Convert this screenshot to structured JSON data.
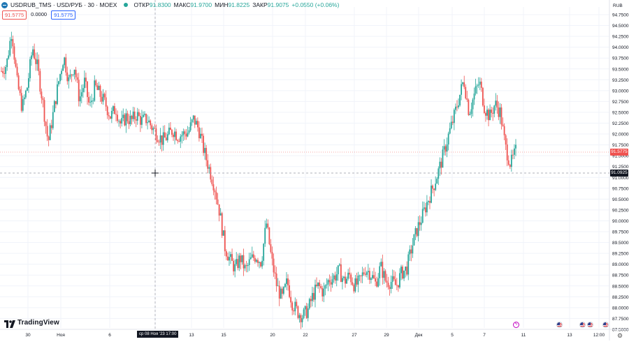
{
  "header": {
    "symbol_title": "USDRUB_TMS · USD/РУБ · 30 · MOEX",
    "open_label": "ОТКР",
    "open_value": "91.8300",
    "high_label": "МАКС",
    "high_value": "91.9700",
    "low_label": "МИН",
    "low_value": "91.8225",
    "close_label": "ЗАКР",
    "close_value": "91.9075",
    "change": "+0.0550 (+0.06%)"
  },
  "trade": {
    "sell": "91.5775",
    "spread": "0.0000",
    "buy": "91.5775"
  },
  "brand": {
    "name": "TradingView"
  },
  "currency_label": "RUB",
  "last_price_label": "91.5775",
  "crosshair_price_label": "91.0925",
  "crosshair_date_label": "ср 08 Ноя '23   17:00",
  "colors": {
    "up": "#26a69a",
    "down": "#ef5350",
    "grid": "#f0f3fa",
    "text": "#131722"
  },
  "chart_data": {
    "type": "candlestick",
    "symbol": "USDRUB_TMS",
    "interval": "30",
    "exchange": "MOEX",
    "y_ticks": [
      "94.7500",
      "94.5000",
      "94.2500",
      "94.0000",
      "93.7500",
      "93.5000",
      "93.2500",
      "93.0000",
      "92.7500",
      "92.5000",
      "92.2500",
      "92.0000",
      "91.7500",
      "91.5000",
      "91.2500",
      "91.0000",
      "90.7500",
      "90.5000",
      "90.2500",
      "90.0000",
      "89.7500",
      "89.5000",
      "89.2500",
      "89.0000",
      "88.7500",
      "88.5000",
      "88.2500",
      "88.0000",
      "87.7500",
      "87.5000"
    ],
    "y_tick_values": [
      94.75,
      94.5,
      94.25,
      94.0,
      93.75,
      93.5,
      93.25,
      93.0,
      92.75,
      92.5,
      92.25,
      92.0,
      91.75,
      91.5,
      91.25,
      91.0,
      90.75,
      90.5,
      90.25,
      90.0,
      89.75,
      89.5,
      89.25,
      89.0,
      88.75,
      88.5,
      88.25,
      88.0,
      87.75,
      87.5
    ],
    "x_ticks": [
      "30",
      "Ноя",
      "6",
      "9",
      "13",
      "15",
      "20",
      "22",
      "27",
      "29",
      "Дек",
      "5",
      "7",
      "11",
      "13",
      "12:00"
    ],
    "price_path": [
      93.45,
      93.6,
      94.4,
      93.2,
      92.6,
      93.1,
      94.0,
      93.5,
      92.7,
      91.8,
      92.5,
      93.2,
      93.8,
      93.2,
      93.6,
      92.8,
      93.2,
      92.6,
      93.1,
      92.9,
      92.7,
      92.4,
      92.6,
      92.2,
      92.4,
      92.3,
      92.45,
      92.3,
      92.35,
      92.15,
      92.0,
      91.85,
      91.95,
      92.1,
      91.95,
      92.0,
      92.05,
      92.35,
      92.1,
      91.6,
      91.2,
      90.8,
      90.2,
      89.4,
      89.1,
      88.9,
      89.15,
      88.85,
      89.1,
      89.2,
      89.05,
      89.95,
      89.1,
      88.5,
      88.2,
      88.6,
      88.1,
      87.9,
      87.8,
      87.95,
      88.3,
      88.5,
      88.35,
      88.65,
      88.7,
      88.85,
      88.6,
      88.75,
      88.5,
      88.6,
      88.9,
      88.8,
      88.55,
      88.95,
      88.6,
      88.6,
      88.5,
      88.8,
      88.9,
      89.4,
      89.8,
      90.1,
      90.45,
      90.75,
      91.1,
      91.5,
      91.95,
      92.35,
      92.8,
      93.25,
      92.5,
      92.9,
      93.2,
      92.6,
      92.4,
      92.7,
      92.5,
      91.7,
      91.3,
      91.6
    ]
  },
  "event_icons": [
    "flash-icon",
    "us-flag-icon",
    "us-flag-icon",
    "us-flag-icon",
    "us-flag-icon"
  ]
}
